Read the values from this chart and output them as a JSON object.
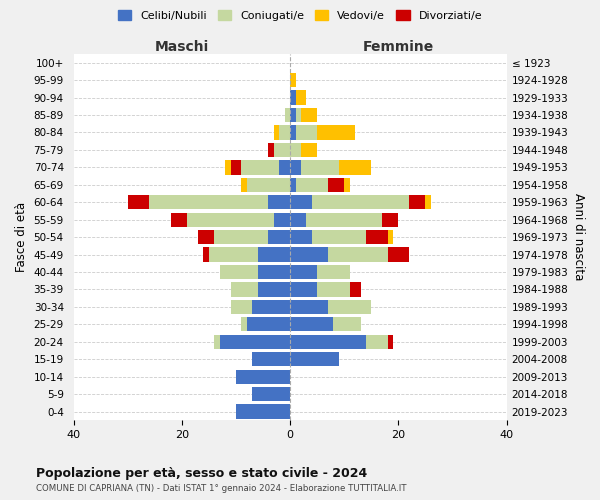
{
  "age_groups": [
    "0-4",
    "5-9",
    "10-14",
    "15-19",
    "20-24",
    "25-29",
    "30-34",
    "35-39",
    "40-44",
    "45-49",
    "50-54",
    "55-59",
    "60-64",
    "65-69",
    "70-74",
    "75-79",
    "80-84",
    "85-89",
    "90-94",
    "95-99",
    "100+"
  ],
  "birth_years": [
    "2019-2023",
    "2014-2018",
    "2009-2013",
    "2004-2008",
    "1999-2003",
    "1994-1998",
    "1989-1993",
    "1984-1988",
    "1979-1983",
    "1974-1978",
    "1969-1973",
    "1964-1968",
    "1959-1963",
    "1954-1958",
    "1949-1953",
    "1944-1948",
    "1939-1943",
    "1934-1938",
    "1929-1933",
    "1924-1928",
    "≤ 1923"
  ],
  "colors": {
    "celibi": "#4472c4",
    "coniugati": "#c5d8a0",
    "vedovi": "#ffc000",
    "divorziati": "#cc0000"
  },
  "maschi": {
    "celibi": [
      10,
      7,
      10,
      7,
      13,
      8,
      7,
      6,
      6,
      6,
      4,
      3,
      4,
      0,
      2,
      0,
      0,
      0,
      0,
      0,
      0
    ],
    "coniugati": [
      0,
      0,
      0,
      0,
      1,
      1,
      4,
      5,
      7,
      9,
      10,
      16,
      22,
      8,
      7,
      3,
      2,
      1,
      0,
      0,
      0
    ],
    "vedovi": [
      0,
      0,
      0,
      0,
      0,
      0,
      0,
      0,
      0,
      0,
      0,
      0,
      0,
      1,
      1,
      0,
      1,
      0,
      0,
      0,
      0
    ],
    "divorziati": [
      0,
      0,
      0,
      0,
      0,
      0,
      0,
      0,
      0,
      1,
      3,
      3,
      4,
      0,
      2,
      1,
      0,
      0,
      0,
      0,
      0
    ]
  },
  "femmine": {
    "celibi": [
      0,
      0,
      0,
      9,
      14,
      8,
      7,
      5,
      5,
      7,
      4,
      3,
      4,
      1,
      2,
      0,
      1,
      1,
      1,
      0,
      0
    ],
    "coniugati": [
      0,
      0,
      0,
      0,
      4,
      5,
      8,
      6,
      6,
      11,
      10,
      14,
      18,
      6,
      7,
      2,
      4,
      1,
      0,
      0,
      0
    ],
    "vedovi": [
      0,
      0,
      0,
      0,
      0,
      0,
      0,
      0,
      0,
      0,
      1,
      0,
      1,
      1,
      6,
      3,
      7,
      3,
      2,
      1,
      0
    ],
    "divorziati": [
      0,
      0,
      0,
      0,
      1,
      0,
      0,
      2,
      0,
      4,
      4,
      3,
      3,
      3,
      0,
      0,
      0,
      0,
      0,
      0,
      0
    ]
  },
  "xlim": 40,
  "title": "Popolazione per età, sesso e stato civile - 2024",
  "subtitle": "COMUNE DI CAPRIANA (TN) - Dati ISTAT 1° gennaio 2024 - Elaborazione TUTTITALIA.IT",
  "ylabel_left": "Fasce di età",
  "ylabel_right": "Anni di nascita",
  "xlabel_left": "Maschi",
  "xlabel_right": "Femmine",
  "legend_labels": [
    "Celibi/Nubili",
    "Coniugati/e",
    "Vedovi/e",
    "Divorziati/e"
  ],
  "background_color": "#f0f0f0",
  "plot_background": "#ffffff"
}
